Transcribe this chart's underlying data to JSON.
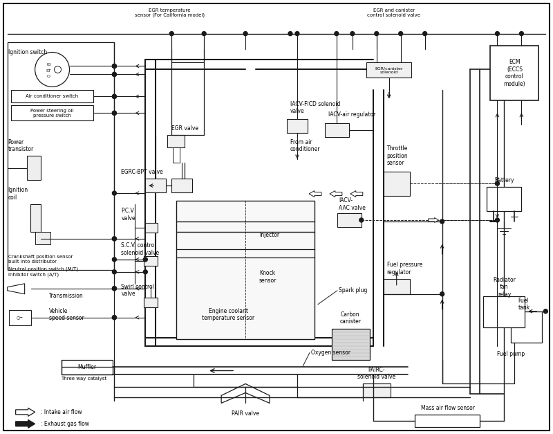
{
  "background_color": "#ffffff",
  "line_color": "#1a1a1a",
  "figsize": [
    8.0,
    6.27
  ],
  "dpi": 100,
  "labels": {
    "egr_temp": "EGR temperature\nsensor (For California model)",
    "egr_canister": "EGR and canister\ncontrol solenoid valve",
    "ignition_switch": "Ignition switch",
    "air_cond_switch": "Air conditioner switch",
    "power_steering": "Power steering oil\npressure switch",
    "power_transistor": "Power\ntransistor",
    "ignition_coil": "Ignition\ncoil",
    "crankshaft": "Crankshaft position sensor\nbuilt into distributor",
    "neutral": "Neutral position switch (M/T)\nInhibitor switch (A/T)",
    "transmission": "Transmission",
    "vehicle_speed": "Vehicle\nspeed sensor",
    "muffler": "Muffler",
    "three_way": "Three way catalyst",
    "egr_valve": "EGR valve",
    "egrc_bpt": "EGRC-BPT valve",
    "pcv": "P.C.V\nvalve",
    "scv": "S.C.V. control\nsolenoid valve",
    "swirl": "Swirl control\nvalve",
    "injector": "Injector",
    "knock": "Knock\nsensor",
    "engine_coolant": "Engine coolant\ntemperature sensor",
    "oxygen": "Oxygen sensor",
    "pair_valve": "PAIR valve",
    "iacv_ficd": "IACV-FICD solenoid\nvalve",
    "from_ac": "From air\nconditioner",
    "iacv_air": "IACV-air regulator",
    "throttle": "Throttle\nposition\nsensor",
    "iacv_aac": "IACV-\nAAC valve",
    "fuel_pressure": "Fuel pressure\nregulator",
    "spark_plug": "Spark plug",
    "carbon_canister": "Carbon\ncanister",
    "pairc": "PAIRC-\nsolenoid valve",
    "mass_air": "Mass air flow sensor",
    "fuel_tank": "Fuel\ntank",
    "fuel_pump": "Fuel pump",
    "radiator_fan": "Radiator\nfan\nrelay",
    "ecm": "ECM\n(ECCS\ncontrol\nmodule)",
    "battery": "Battery",
    "intake_legend": ": Intake air flow",
    "exhaust_legend": ": Exhaust gas flow"
  }
}
